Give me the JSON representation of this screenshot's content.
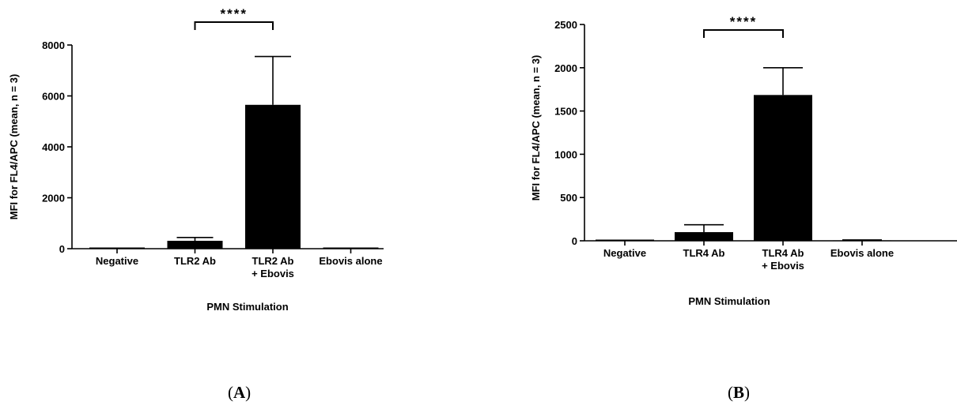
{
  "chart_data": [
    {
      "type": "bar",
      "panel_label": "A",
      "categories": [
        "Negative",
        "TLR2  Ab",
        "TLR2 Ab\n+ Ebovis",
        "Ebovis alone"
      ],
      "values": [
        0,
        310,
        5650,
        0
      ],
      "errors": [
        0,
        130,
        1900,
        0
      ],
      "xlabel": "PMN Stimulation",
      "ylabel": "MFI for FL4/APC (mean, n = 3)",
      "ylim": [
        0,
        8000
      ],
      "yticks": [
        0,
        2000,
        4000,
        6000,
        8000
      ],
      "significance": {
        "from": 1,
        "to": 2,
        "label": "****"
      },
      "bar_color": "#000000",
      "grid": false
    },
    {
      "type": "bar",
      "panel_label": "B",
      "categories": [
        "Negative",
        "TLR4 Ab",
        "TLR4 Ab\n+ Ebovis",
        "Ebovis alone"
      ],
      "values": [
        0,
        100,
        1685,
        5
      ],
      "errors": [
        0,
        85,
        315,
        5
      ],
      "xlabel": "PMN Stimulation",
      "ylabel": "MFI for FL4/APC (mean, n = 3)",
      "ylim": [
        0,
        2500
      ],
      "yticks": [
        0,
        500,
        1000,
        1500,
        2000,
        2500
      ],
      "significance": {
        "from": 1,
        "to": 2,
        "label": "****"
      },
      "bar_color": "#000000",
      "grid": false
    }
  ]
}
